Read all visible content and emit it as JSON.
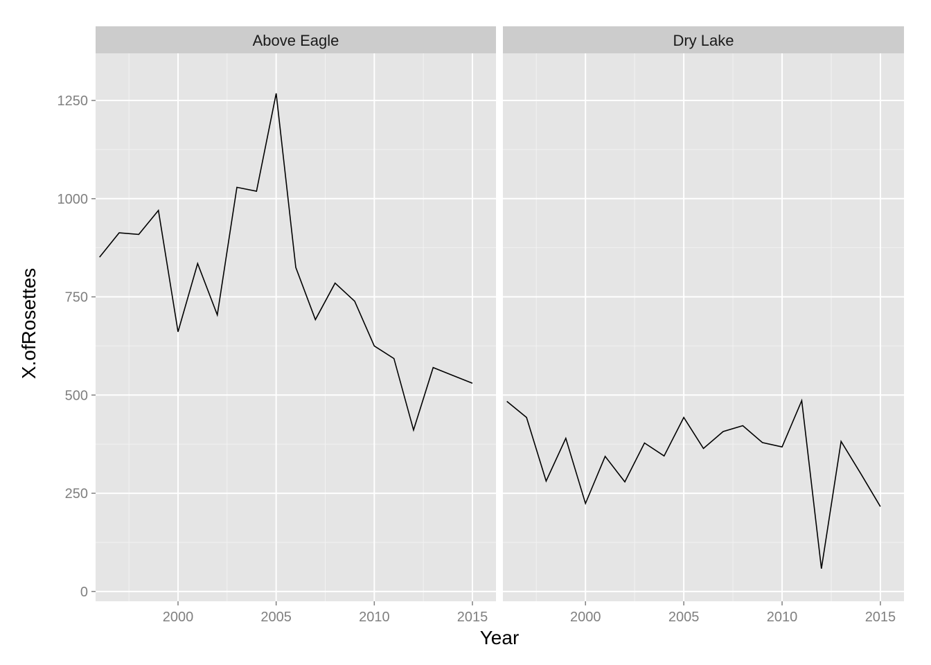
{
  "chart_data": {
    "type": "line",
    "xlabel": "Year",
    "ylabel": "X.ofRosettes",
    "xlim": [
      1995.8,
      2016.2
    ],
    "ylim": [
      -25,
      1370
    ],
    "x_ticks": [
      2000,
      2005,
      2010,
      2015
    ],
    "x_minor_ticks": [
      1997.5,
      2002.5,
      2007.5,
      2012.5
    ],
    "y_ticks": [
      0,
      250,
      500,
      750,
      1000,
      1250
    ],
    "y_minor_ticks": [
      125,
      375,
      625,
      875,
      1125
    ],
    "grid": true,
    "colors": {
      "panel_bg": "#e5e5e5",
      "strip_bg": "#cccccc",
      "grid_major": "#ffffff",
      "grid_minor": "#f2f2f2",
      "line": "#000000"
    },
    "panels": [
      {
        "strip_label": "Above Eagle",
        "x": [
          1996,
          1997,
          1998,
          1999,
          2000,
          2001,
          2002,
          2003,
          2004,
          2005,
          2006,
          2007,
          2008,
          2009,
          2010,
          2011,
          2012,
          2013,
          2014,
          2015
        ],
        "y": [
          851,
          913,
          909,
          970,
          661,
          835,
          704,
          1029,
          1019,
          1268,
          825,
          692,
          785,
          739,
          625,
          593,
          411,
          570,
          550,
          530
        ]
      },
      {
        "strip_label": "Dry Lake",
        "x": [
          1996,
          1997,
          1998,
          1999,
          2000,
          2001,
          2002,
          2003,
          2004,
          2005,
          2006,
          2007,
          2008,
          2009,
          2010,
          2011,
          2012,
          2013,
          2014,
          2015
        ],
        "y": [
          484,
          443,
          281,
          390,
          224,
          344,
          279,
          378,
          345,
          443,
          364,
          407,
          422,
          379,
          368,
          486,
          58,
          382,
          300,
          216
        ]
      }
    ]
  }
}
